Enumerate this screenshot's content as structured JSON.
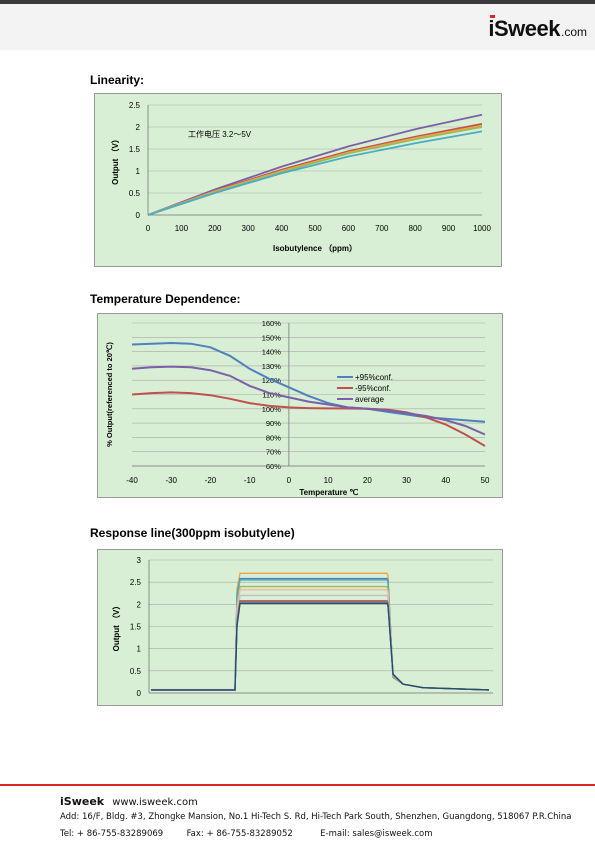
{
  "header": {
    "brand": "iSweek",
    "tld": ".com"
  },
  "sections": {
    "linearity": "Linearity:",
    "temperature": "Temperature Dependence:",
    "response": "Response line(300ppm isobutylene)"
  },
  "chart_data": [
    {
      "type": "line",
      "title": "",
      "annotation": "工作电压 3.2～5V",
      "xlabel": "Isobutylence （ppm）",
      "ylabel": "Output （V）",
      "xlim": [
        0,
        1000
      ],
      "ylim": [
        0,
        2.5
      ],
      "xticks": [
        "0",
        "100",
        "200",
        "300",
        "400",
        "500",
        "600",
        "700",
        "800",
        "900",
        "1000"
      ],
      "yticks": [
        "0",
        "0.5",
        "1",
        "1.5",
        "2",
        "2.5"
      ],
      "grid": true,
      "background": "#d9efd5",
      "series": [
        {
          "color": "#7b5fa8",
          "x": [
            0,
            200,
            400,
            600,
            800,
            1000
          ],
          "values": [
            0,
            0.58,
            1.1,
            1.56,
            1.95,
            2.28
          ]
        },
        {
          "color": "#c0504d",
          "x": [
            0,
            200,
            400,
            600,
            800,
            1000
          ],
          "values": [
            0,
            0.55,
            1.03,
            1.45,
            1.78,
            2.07
          ]
        },
        {
          "color": "#f0a34a",
          "x": [
            0,
            200,
            400,
            600,
            800,
            1000
          ],
          "values": [
            0,
            0.54,
            1.0,
            1.42,
            1.75,
            2.03
          ]
        },
        {
          "color": "#9bbb59",
          "x": [
            0,
            200,
            400,
            600,
            800,
            1000
          ],
          "values": [
            0,
            0.52,
            0.98,
            1.4,
            1.72,
            2.0
          ]
        },
        {
          "color": "#4bacc6",
          "x": [
            0,
            200,
            400,
            600,
            800,
            1000
          ],
          "values": [
            0,
            0.5,
            0.95,
            1.33,
            1.63,
            1.9
          ]
        }
      ]
    },
    {
      "type": "line",
      "title": "",
      "xlabel": "Temperature ℃",
      "ylabel": "% Output(referenced to 20℃)",
      "xlim": [
        -40,
        50
      ],
      "ylim": [
        60,
        160
      ],
      "xticks": [
        "-40",
        "-30",
        "-20",
        "-10",
        "0",
        "10",
        "20",
        "30",
        "40",
        "50"
      ],
      "yticks": [
        "60%",
        "70%",
        "80%",
        "90%",
        "100%",
        "110%",
        "120%",
        "130%",
        "140%",
        "150%",
        "160%"
      ],
      "grid": true,
      "legend": "right",
      "background": "#d9efd5",
      "series": [
        {
          "name": "+95%conf.",
          "color": "#4f81bd",
          "x": [
            -40,
            -35,
            -30,
            -25,
            -20,
            -15,
            -10,
            -5,
            0,
            5,
            10,
            15,
            20,
            25,
            30,
            35,
            40,
            45,
            50
          ],
          "values": [
            145,
            145.5,
            146,
            145.5,
            143,
            137,
            128,
            121,
            115,
            109,
            104,
            101,
            100,
            98,
            96,
            94,
            93,
            92,
            91
          ]
        },
        {
          "name": "-95%conf.",
          "color": "#c0504d",
          "x": [
            -40,
            -35,
            -30,
            -25,
            -20,
            -15,
            -10,
            -5,
            0,
            5,
            10,
            15,
            20,
            25,
            30,
            35,
            40,
            45,
            50
          ],
          "values": [
            110,
            111,
            111.5,
            111,
            109.5,
            107,
            104,
            102,
            101,
            100.5,
            100.3,
            100.2,
            100,
            99.5,
            97.5,
            94,
            89,
            82,
            74
          ]
        },
        {
          "name": "average",
          "color": "#7b5fa8",
          "x": [
            -40,
            -35,
            -30,
            -25,
            -20,
            -15,
            -10,
            -5,
            0,
            5,
            10,
            15,
            20,
            25,
            30,
            35,
            40,
            45,
            50
          ],
          "values": [
            128,
            129,
            129.5,
            129,
            127,
            123,
            116,
            111,
            108,
            105,
            103,
            101,
            100,
            99,
            97,
            95,
            92,
            88,
            82
          ]
        }
      ]
    },
    {
      "type": "line",
      "title": "",
      "xlabel": "",
      "ylabel": "Output （V）",
      "ylim": [
        0,
        3
      ],
      "yticks": [
        "0",
        "0.5",
        "1",
        "1.5",
        "2",
        "2.5",
        "3"
      ],
      "grid": true,
      "background": "#d9efd5",
      "series": [
        {
          "color": "#f0a34a",
          "high": 2.7
        },
        {
          "color": "#4f81bd",
          "high": 2.58
        },
        {
          "color": "#4bacc6",
          "high": 2.55
        },
        {
          "color": "#9bbb59",
          "high": 2.4
        },
        {
          "color": "#f4b6a0",
          "high": 2.33
        },
        {
          "color": "#bfbfbf",
          "high": 2.2
        },
        {
          "color": "#c0504d",
          "high": 2.08
        },
        {
          "color": "#7f7f7f",
          "high": 2.05
        },
        {
          "color": "#1f4e79",
          "high": 2.02
        }
      ]
    }
  ],
  "footer": {
    "brand": "iSweek",
    "website": "www.isweek.com",
    "address": "Add: 16/F, Bldg. #3, Zhongke Mansion, No.1 Hi-Tech S. Rd, Hi-Tech Park South, Shenzhen, Guangdong, 518067 P.R.China",
    "tel": "Tel: + 86-755-83289069",
    "fax": "Fax: + 86-755-83289052",
    "email": "E-mail: sales@isweek.com"
  }
}
